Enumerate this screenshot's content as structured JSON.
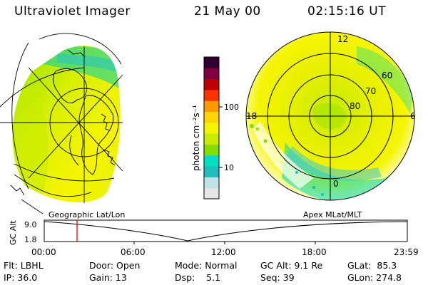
{
  "header": {
    "title": "Ultraviolet Imager",
    "date": "21 May 00",
    "time": "02:15:16 UT"
  },
  "panels": {
    "left_caption": "Geographic Lat/Lon",
    "right_caption": "Apex MLat/MLT"
  },
  "colorbar": {
    "unit_label": "photon cm⁻²s⁻¹",
    "tick_100": "100",
    "tick_10": "10",
    "colors": [
      "#e6e6e6",
      "#bfe3e6",
      "#1fbfbf",
      "#00e0c0",
      "#80e000",
      "#c8ec00",
      "#f5f500",
      "#ffd400",
      "#ff9900",
      "#ff3300",
      "#c00000",
      "#800040",
      "#300030"
    ]
  },
  "polar_labels": {
    "mlt_12": "12",
    "mlt_18": "18",
    "mlt_6": "6",
    "mlt_0": "0",
    "lat_60": "60",
    "lat_70": "70",
    "lat_80": "80"
  },
  "timeline": {
    "ylabel": "GC Alt",
    "y_top": "9.0",
    "y_bottom": "1.8",
    "ticks": [
      "00:00",
      "06:00",
      "12:00",
      "18:00",
      "23:59"
    ],
    "marker_time": "02:15"
  },
  "status": {
    "flt": "Flt: LBHL",
    "ip": "IP: 36.0",
    "door": "Door: Open",
    "gain": "Gain: 13",
    "mode": "Mode: Normal",
    "dsp": "Dsp:    5.1",
    "gc_alt": "GC Alt: 9.1 Re",
    "seq": "Seq: 39",
    "glat": "GLat:  85.3",
    "glon": "GLon: 274.8"
  }
}
